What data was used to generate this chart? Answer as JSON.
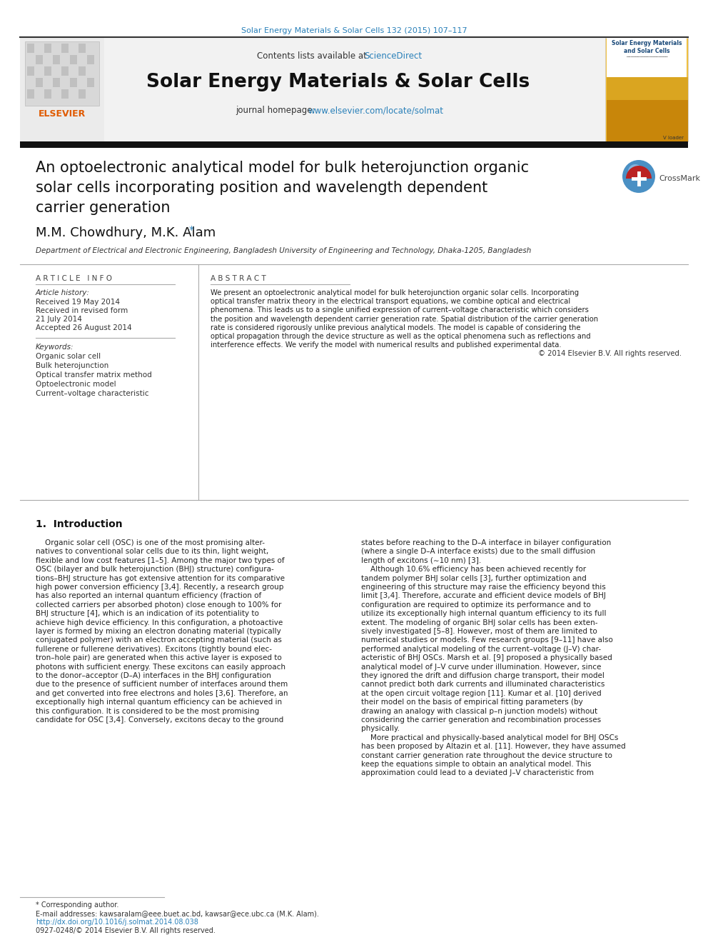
{
  "page_title": "Solar Energy Materials & Solar Cells 132 (2015) 107–117",
  "journal_name": "Solar Energy Materials & Solar Cells",
  "contents_text": "Contents lists available at ",
  "contents_link": "ScienceDirect",
  "homepage_text": "journal homepage: ",
  "homepage_link": "www.elsevier.com/locate/solmat",
  "paper_title_line1": "An optoelectronic analytical model for bulk heterojunction organic",
  "paper_title_line2": "solar cells incorporating position and wavelength dependent",
  "paper_title_line3": "carrier generation",
  "authors_text": "M.M. Chowdhury, M.K. Alam",
  "affiliation": "Department of Electrical and Electronic Engineering, Bangladesh University of Engineering and Technology, Dhaka-1205, Bangladesh",
  "article_info_header": "A R T I C L E   I N F O",
  "abstract_header": "A B S T R A C T",
  "article_history_label": "Article history:",
  "received": "Received 19 May 2014",
  "revised": "Received in revised form",
  "revised_date": "21 July 2014",
  "accepted": "Accepted 26 August 2014",
  "keywords_label": "Keywords:",
  "keywords": [
    "Organic solar cell",
    "Bulk heterojunction",
    "Optical transfer matrix method",
    "Optoelectronic model",
    "Current–voltage characteristic"
  ],
  "abstract_lines": [
    "We present an optoelectronic analytical model for bulk heterojunction organic solar cells. Incorporating",
    "optical transfer matrix theory in the electrical transport equations, we combine optical and electrical",
    "phenomena. This leads us to a single unified expression of current–voltage characteristic which considers",
    "the position and wavelength dependent carrier generation rate. Spatial distribution of the carrier generation",
    "rate is considered rigorously unlike previous analytical models. The model is capable of considering the",
    "optical propagation through the device structure as well as the optical phenomena such as reflections and",
    "interference effects. We verify the model with numerical results and published experimental data."
  ],
  "copyright": "© 2014 Elsevier B.V. All rights reserved.",
  "section1_title": "1.  Introduction",
  "col1_lines": [
    "    Organic solar cell (OSC) is one of the most promising alter-",
    "natives to conventional solar cells due to its thin, light weight,",
    "flexible and low cost features [1–5]. Among the major two types of",
    "OSC (bilayer and bulk heterojunction (BHJ) structure) configura-",
    "tions–BHJ structure has got extensive attention for its comparative",
    "high power conversion efficiency [3,4]. Recently, a research group",
    "has also reported an internal quantum efficiency (fraction of",
    "collected carriers per absorbed photon) close enough to 100% for",
    "BHJ structure [4], which is an indication of its potentiality to",
    "achieve high device efficiency. In this configuration, a photoactive",
    "layer is formed by mixing an electron donating material (typically",
    "conjugated polymer) with an electron accepting material (such as",
    "fullerene or fullerene derivatives). Excitons (tightly bound elec-",
    "tron–hole pair) are generated when this active layer is exposed to",
    "photons with sufficient energy. These excitons can easily approach",
    "to the donor–acceptor (D–A) interfaces in the BHJ configuration",
    "due to the presence of sufficient number of interfaces around them",
    "and get converted into free electrons and holes [3,6]. Therefore, an",
    "exceptionally high internal quantum efficiency can be achieved in",
    "this configuration. It is considered to be the most promising",
    "candidate for OSC [3,4]. Conversely, excitons decay to the ground"
  ],
  "col2_lines": [
    "states before reaching to the D–A interface in bilayer configuration",
    "(where a single D–A interface exists) due to the small diffusion",
    "length of excitons (∼10 nm) [3].",
    "    Although 10.6% efficiency has been achieved recently for",
    "tandem polymer BHJ solar cells [3], further optimization and",
    "engineering of this structure may raise the efficiency beyond this",
    "limit [3,4]. Therefore, accurate and efficient device models of BHJ",
    "configuration are required to optimize its performance and to",
    "utilize its exceptionally high internal quantum efficiency to its full",
    "extent. The modeling of organic BHJ solar cells has been exten-",
    "sively investigated [5–8]. However, most of them are limited to",
    "numerical studies or models. Few research groups [9–11] have also",
    "performed analytical modeling of the current–voltage (J–V) char-",
    "acteristic of BHJ OSCs. Marsh et al. [9] proposed a physically based",
    "analytical model of J–V curve under illumination. However, since",
    "they ignored the drift and diffusion charge transport, their model",
    "cannot predict both dark currents and illuminated characteristics",
    "at the open circuit voltage region [11]. Kumar et al. [10] derived",
    "their model on the basis of empirical fitting parameters (by",
    "drawing an analogy with classical p–n junction models) without",
    "considering the carrier generation and recombination processes",
    "physically.",
    "    More practical and physically-based analytical model for BHJ OSCs",
    "has been proposed by Altazin et al. [11]. However, they have assumed",
    "constant carrier generation rate throughout the device structure to",
    "keep the equations simple to obtain an analytical model. This",
    "approximation could lead to a deviated J–V characteristic from"
  ],
  "footnote_star": "* Corresponding author.",
  "footnote_email": "E-mail addresses: kawsaralam@eee.buet.ac.bd, kawsar@ece.ubc.ca (M.K. Alam).",
  "footnote_doi": "http://dx.doi.org/10.1016/j.solmat.2014.08.038",
  "footnote_issn": "0927-0248/© 2014 Elsevier B.V. All rights reserved.",
  "bg_color": "#ffffff",
  "link_color": "#2980b9",
  "text_color": "#222222",
  "gray_color": "#555555",
  "elsevier_orange": "#e05a00"
}
